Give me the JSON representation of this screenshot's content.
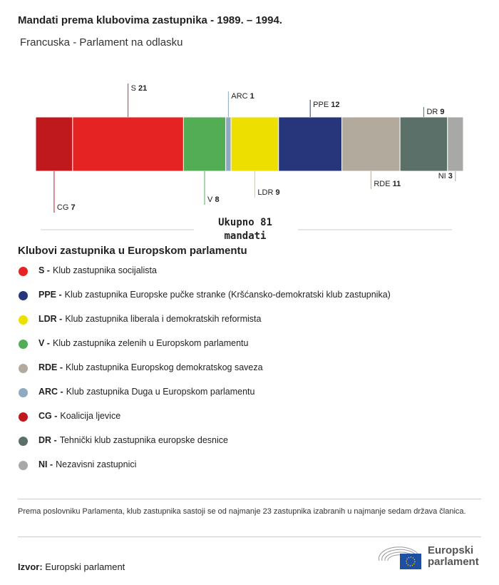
{
  "title": "Mandati prema klubovima zastupnika - 1989. – 1994.",
  "subtitle": "Francuska - Parlament na odlasku",
  "chart_data": {
    "type": "bar",
    "orientation": "horizontal-stacked",
    "categories": [
      "CG",
      "S",
      "V",
      "ARC",
      "LDR",
      "PPE",
      "RDE",
      "DR",
      "NI"
    ],
    "values": [
      7,
      21,
      8,
      1,
      9,
      12,
      11,
      9,
      3
    ],
    "colors": [
      "#c0191d",
      "#e42322",
      "#52ad55",
      "#8daac1",
      "#eddf00",
      "#27357b",
      "#b3aa9e",
      "#5a7069",
      "#a8a9a6"
    ],
    "total_label": "Ukupno 81 mandati"
  },
  "legend": {
    "title": "Klubovi zastupnika u Europskom parlamentu",
    "items": [
      {
        "abbr": "S -",
        "text": "Klub zastupnika socijalista",
        "color": "#e42322"
      },
      {
        "abbr": "PPE -",
        "text": "Klub zastupnika Europske pučke stranke (Kršćansko-demokratski klub zastupnika)",
        "color": "#27357b"
      },
      {
        "abbr": "LDR -",
        "text": "Klub zastupnika liberala i demokratskih reformista",
        "color": "#eddf00"
      },
      {
        "abbr": "V -",
        "text": "Klub zastupnika zelenih u Europskom parlamentu",
        "color": "#52ad55"
      },
      {
        "abbr": "RDE -",
        "text": "Klub zastupnika Europskog demokratskog saveza",
        "color": "#b3aa9e"
      },
      {
        "abbr": "ARC -",
        "text": "Klub zastupnika Duga u Europskom parlamentu",
        "color": "#8daac1"
      },
      {
        "abbr": "CG -",
        "text": "Koalicija ljevice",
        "color": "#c0191d"
      },
      {
        "abbr": "DR -",
        "text": "Tehnički klub zastupnika europske desnice",
        "color": "#5a7069"
      },
      {
        "abbr": "NI -",
        "text": "Nezavisni zastupnici",
        "color": "#a8a9a6"
      }
    ]
  },
  "note": "Prema poslovniku Parlamenta, klub zastupnika sastoji se od najmanje 23 zastupnika izabranih u najmanje sedam država članica.",
  "source": {
    "label": "Izvor:",
    "value": "Europski parlament"
  },
  "logo": {
    "line1": "Europski",
    "line2": "parlament"
  }
}
